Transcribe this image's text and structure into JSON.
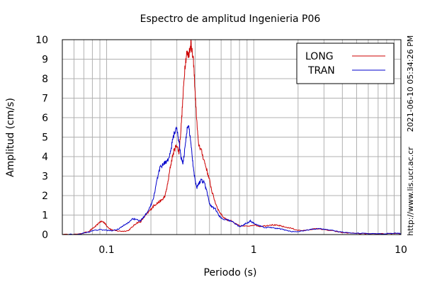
{
  "chart_data": {
    "type": "line",
    "title": "Espectro de amplitud Ingenieria P06",
    "xlabel": "Periodo (s)",
    "ylabel": "Amplitud (cm/s)",
    "x_scale": "log",
    "xlim": [
      0.05,
      10
    ],
    "ylim": [
      0,
      10
    ],
    "x_tick_values": [
      0.1,
      1,
      10
    ],
    "x_tick_labels": [
      "0.1",
      "1",
      "10"
    ],
    "y_tick_values": [
      0,
      1,
      2,
      3,
      4,
      5,
      6,
      7,
      8,
      9,
      10
    ],
    "y_tick_labels": [
      "0",
      "1",
      "2",
      "3",
      "4",
      "5",
      "6",
      "7",
      "8",
      "9",
      "10"
    ],
    "grid": true,
    "legend_position": "top-right",
    "series": [
      {
        "name": "LONG",
        "color": "#cc0000",
        "points": [
          [
            0.05,
            0
          ],
          [
            0.065,
            0.02
          ],
          [
            0.075,
            0.15
          ],
          [
            0.08,
            0.3
          ],
          [
            0.085,
            0.45
          ],
          [
            0.09,
            0.65
          ],
          [
            0.093,
            0.68
          ],
          [
            0.097,
            0.6
          ],
          [
            0.1,
            0.45
          ],
          [
            0.105,
            0.3
          ],
          [
            0.11,
            0.22
          ],
          [
            0.12,
            0.18
          ],
          [
            0.13,
            0.17
          ],
          [
            0.14,
            0.2
          ],
          [
            0.15,
            0.4
          ],
          [
            0.16,
            0.6
          ],
          [
            0.17,
            0.65
          ],
          [
            0.18,
            0.9
          ],
          [
            0.19,
            1.1
          ],
          [
            0.2,
            1.3
          ],
          [
            0.21,
            1.5
          ],
          [
            0.22,
            1.6
          ],
          [
            0.23,
            1.7
          ],
          [
            0.24,
            1.8
          ],
          [
            0.25,
            2.0
          ],
          [
            0.26,
            2.6
          ],
          [
            0.27,
            3.4
          ],
          [
            0.28,
            4.0
          ],
          [
            0.29,
            4.4
          ],
          [
            0.3,
            4.6
          ],
          [
            0.31,
            4.2
          ],
          [
            0.32,
            5.4
          ],
          [
            0.33,
            7.0
          ],
          [
            0.34,
            8.6
          ],
          [
            0.35,
            9.3
          ],
          [
            0.36,
            9.2
          ],
          [
            0.37,
            9.6
          ],
          [
            0.375,
            9.9
          ],
          [
            0.38,
            9.4
          ],
          [
            0.39,
            8.8
          ],
          [
            0.4,
            7.2
          ],
          [
            0.41,
            5.8
          ],
          [
            0.42,
            4.7
          ],
          [
            0.44,
            4.3
          ],
          [
            0.46,
            3.8
          ],
          [
            0.48,
            3.3
          ],
          [
            0.5,
            2.8
          ],
          [
            0.52,
            2.2
          ],
          [
            0.55,
            1.6
          ],
          [
            0.58,
            1.2
          ],
          [
            0.62,
            0.9
          ],
          [
            0.66,
            0.75
          ],
          [
            0.7,
            0.7
          ],
          [
            0.75,
            0.55
          ],
          [
            0.8,
            0.45
          ],
          [
            0.9,
            0.42
          ],
          [
            1.0,
            0.5
          ],
          [
            1.1,
            0.42
          ],
          [
            1.2,
            0.45
          ],
          [
            1.3,
            0.5
          ],
          [
            1.4,
            0.48
          ],
          [
            1.5,
            0.45
          ],
          [
            1.6,
            0.4
          ],
          [
            1.8,
            0.32
          ],
          [
            2.0,
            0.22
          ],
          [
            2.2,
            0.2
          ],
          [
            2.5,
            0.28
          ],
          [
            2.8,
            0.3
          ],
          [
            3.0,
            0.25
          ],
          [
            3.5,
            0.18
          ],
          [
            4.0,
            0.1
          ],
          [
            5.0,
            0.06
          ],
          [
            6.0,
            0.04
          ],
          [
            8.0,
            0.04
          ],
          [
            9.0,
            0.05
          ],
          [
            10.0,
            0.03
          ]
        ]
      },
      {
        "name": "TRAN",
        "color": "#0000cc",
        "points": [
          [
            0.05,
            0
          ],
          [
            0.065,
            0.02
          ],
          [
            0.075,
            0.12
          ],
          [
            0.08,
            0.2
          ],
          [
            0.09,
            0.25
          ],
          [
            0.1,
            0.22
          ],
          [
            0.11,
            0.2
          ],
          [
            0.12,
            0.28
          ],
          [
            0.13,
            0.45
          ],
          [
            0.14,
            0.6
          ],
          [
            0.15,
            0.82
          ],
          [
            0.16,
            0.75
          ],
          [
            0.17,
            0.7
          ],
          [
            0.18,
            0.95
          ],
          [
            0.19,
            1.2
          ],
          [
            0.2,
            1.5
          ],
          [
            0.21,
            2.0
          ],
          [
            0.22,
            2.8
          ],
          [
            0.23,
            3.4
          ],
          [
            0.24,
            3.6
          ],
          [
            0.25,
            3.7
          ],
          [
            0.26,
            3.8
          ],
          [
            0.27,
            4.1
          ],
          [
            0.28,
            4.8
          ],
          [
            0.29,
            5.3
          ],
          [
            0.3,
            5.4
          ],
          [
            0.31,
            4.8
          ],
          [
            0.32,
            4.0
          ],
          [
            0.33,
            3.6
          ],
          [
            0.34,
            4.4
          ],
          [
            0.35,
            5.3
          ],
          [
            0.36,
            5.6
          ],
          [
            0.37,
            5.0
          ],
          [
            0.38,
            4.2
          ],
          [
            0.39,
            3.3
          ],
          [
            0.4,
            2.8
          ],
          [
            0.41,
            2.4
          ],
          [
            0.42,
            2.6
          ],
          [
            0.44,
            2.8
          ],
          [
            0.46,
            2.7
          ],
          [
            0.48,
            2.2
          ],
          [
            0.5,
            1.6
          ],
          [
            0.52,
            1.4
          ],
          [
            0.55,
            1.3
          ],
          [
            0.58,
            0.95
          ],
          [
            0.62,
            0.8
          ],
          [
            0.66,
            0.75
          ],
          [
            0.7,
            0.7
          ],
          [
            0.75,
            0.55
          ],
          [
            0.8,
            0.4
          ],
          [
            0.85,
            0.5
          ],
          [
            0.9,
            0.6
          ],
          [
            0.95,
            0.7
          ],
          [
            1.0,
            0.58
          ],
          [
            1.1,
            0.45
          ],
          [
            1.2,
            0.35
          ],
          [
            1.3,
            0.38
          ],
          [
            1.4,
            0.32
          ],
          [
            1.5,
            0.3
          ],
          [
            1.6,
            0.25
          ],
          [
            1.8,
            0.15
          ],
          [
            2.0,
            0.15
          ],
          [
            2.2,
            0.2
          ],
          [
            2.5,
            0.28
          ],
          [
            2.8,
            0.3
          ],
          [
            3.0,
            0.28
          ],
          [
            3.5,
            0.2
          ],
          [
            4.0,
            0.12
          ],
          [
            5.0,
            0.07
          ],
          [
            6.0,
            0.05
          ],
          [
            8.0,
            0.05
          ],
          [
            9.0,
            0.08
          ],
          [
            10.0,
            0.05
          ]
        ]
      }
    ]
  },
  "side_text": {
    "timestamp": "2021-06-10 05:34:26 PM",
    "url": "http://www.lis.ucr.ac.cr"
  }
}
